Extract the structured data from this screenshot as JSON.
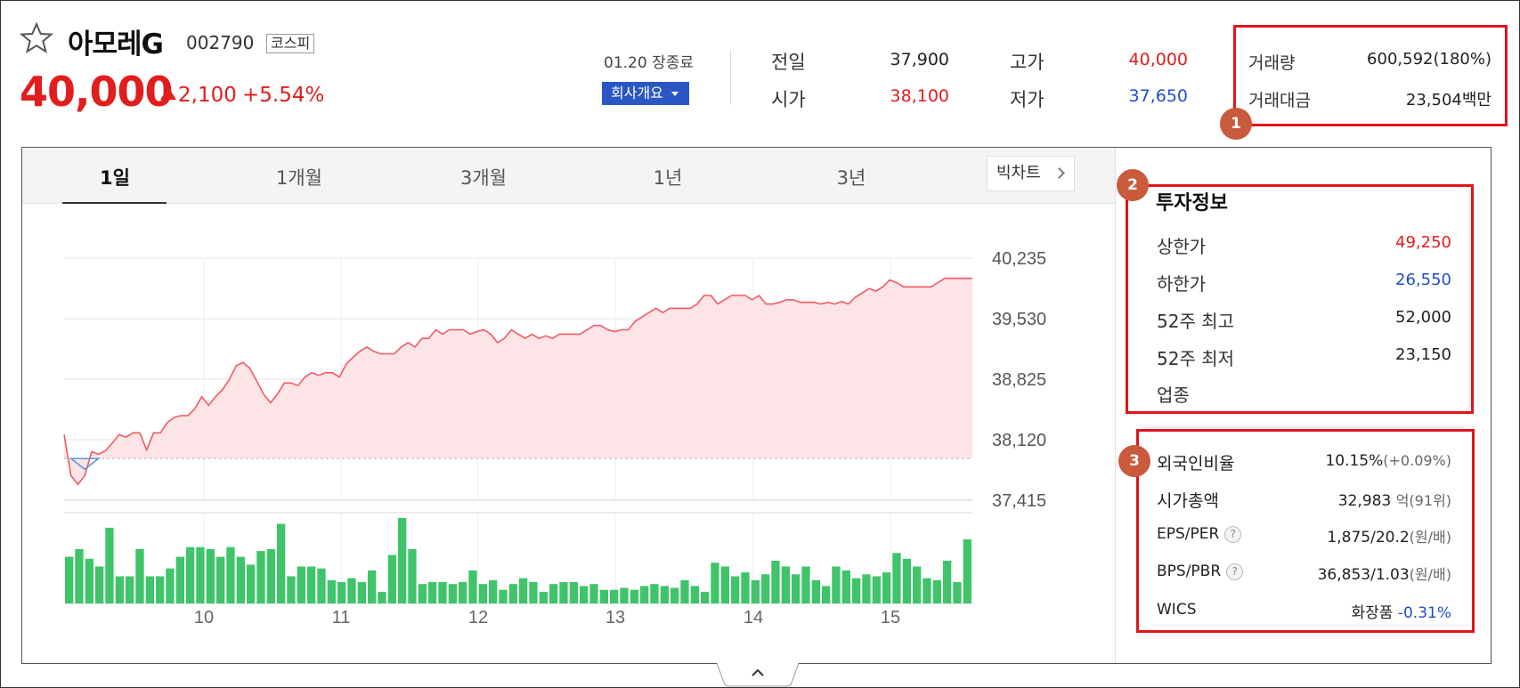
{
  "header": {
    "stock_name": "아모레G",
    "stock_code": "002790",
    "market": "코스피",
    "price": "40,000",
    "change_abs": "2,100",
    "change_pct": "+5.54%",
    "close_status": "01.20 장종료",
    "company_button": "회사개요"
  },
  "quotes": {
    "prev_label": "전일",
    "prev_value": "37,900",
    "open_label": "시가",
    "open_value": "38,100",
    "high_label": "고가",
    "high_value": "40,000",
    "low_label": "저가",
    "low_value": "37,650",
    "volume_label": "거래량",
    "volume_value": "600,592(180%)",
    "amount_label": "거래대금",
    "amount_value": "23,504백만"
  },
  "annotations": {
    "badge1": "1",
    "badge2": "2",
    "badge3": "3"
  },
  "tabs": [
    "1일",
    "1개월",
    "3개월",
    "1년",
    "3년"
  ],
  "bigchart_label": "빅차트",
  "invest_info": {
    "title": "투자정보",
    "rows": [
      {
        "label": "상한가",
        "value": "49,250",
        "color": "#e11d1d"
      },
      {
        "label": "하한가",
        "value": "26,550",
        "color": "#1e4fc7"
      },
      {
        "label": "52주 최고",
        "value": "52,000",
        "color": "#222222"
      },
      {
        "label": "52주 최저",
        "value": "23,150",
        "color": "#222222"
      },
      {
        "label": "업종",
        "value": "",
        "color": "#222222"
      }
    ]
  },
  "indicators": {
    "foreign_label": "외국인비율",
    "foreign_value": "10.15%",
    "foreign_sub": "(+0.09%)",
    "mcap_label": "시가총액",
    "mcap_value": "32,983",
    "mcap_unit": "억",
    "mcap_sub": "(91위)",
    "eps_label": "EPS/PER",
    "eps_value": "1,875/20.2",
    "eps_sub": "(원/배)",
    "bps_label": "BPS/PBR",
    "bps_value": "36,853/1.03",
    "bps_sub": "(원/배)",
    "wics_label": "WICS",
    "wics_value": "화장품",
    "wics_change": "-0.31%",
    "help_glyph": "?"
  },
  "colors": {
    "up": "#e11d1d",
    "down": "#1e4fc7",
    "highlight": "#e3131c",
    "badge": "#c95a3c",
    "volume": "#3fc46a",
    "accent": "#2b57c4"
  },
  "chart_data": {
    "type": "line",
    "y_ticks": [
      "40,235",
      "39,530",
      "38,825",
      "38,120",
      "37,415"
    ],
    "x_ticks": [
      "10",
      "11",
      "12",
      "13",
      "14",
      "15"
    ],
    "ylim": [
      37415,
      40235
    ],
    "prev_close": 37900,
    "price_series": [
      38180,
      37700,
      37600,
      37700,
      37980,
      37950,
      37990,
      38080,
      38180,
      38150,
      38200,
      38200,
      38000,
      38200,
      38200,
      38320,
      38380,
      38400,
      38400,
      38480,
      38620,
      38520,
      38620,
      38700,
      38820,
      38980,
      39020,
      38950,
      38800,
      38650,
      38550,
      38650,
      38780,
      38780,
      38750,
      38850,
      38900,
      38870,
      38900,
      38900,
      38850,
      39000,
      39080,
      39150,
      39200,
      39150,
      39120,
      39120,
      39120,
      39200,
      39250,
      39200,
      39300,
      39300,
      39400,
      39350,
      39400,
      39400,
      39400,
      39350,
      39380,
      39400,
      39350,
      39250,
      39300,
      39400,
      39350,
      39300,
      39350,
      39300,
      39330,
      39300,
      39350,
      39350,
      39350,
      39350,
      39400,
      39450,
      39450,
      39400,
      39380,
      39400,
      39400,
      39500,
      39550,
      39600,
      39650,
      39600,
      39650,
      39650,
      39650,
      39650,
      39700,
      39800,
      39800,
      39700,
      39750,
      39800,
      39800,
      39800,
      39750,
      39800,
      39700,
      39700,
      39720,
      39750,
      39750,
      39720,
      39720,
      39720,
      39700,
      39720,
      39700,
      39730,
      39700,
      39780,
      39830,
      39880,
      39850,
      39900,
      39980,
      39950,
      39900,
      39900,
      39900,
      39900,
      39900,
      39950,
      40000,
      40000,
      40000,
      40000,
      40000
    ],
    "volume_series": [
      48,
      56,
      46,
      38,
      78,
      28,
      28,
      56,
      28,
      28,
      36,
      48,
      58,
      58,
      56,
      48,
      58,
      48,
      40,
      54,
      56,
      82,
      28,
      38,
      38,
      36,
      24,
      22,
      26,
      22,
      34,
      12,
      50,
      88,
      56,
      20,
      22,
      22,
      20,
      22,
      34,
      20,
      24,
      14,
      20,
      26,
      22,
      12,
      20,
      22,
      22,
      18,
      20,
      14,
      14,
      16,
      14,
      18,
      20,
      18,
      16,
      24,
      18,
      12,
      42,
      38,
      28,
      32,
      24,
      30,
      44,
      38,
      30,
      38,
      24,
      18,
      38,
      34,
      26,
      30,
      28,
      32,
      52,
      46,
      38,
      26,
      24,
      44,
      22,
      66
    ]
  }
}
